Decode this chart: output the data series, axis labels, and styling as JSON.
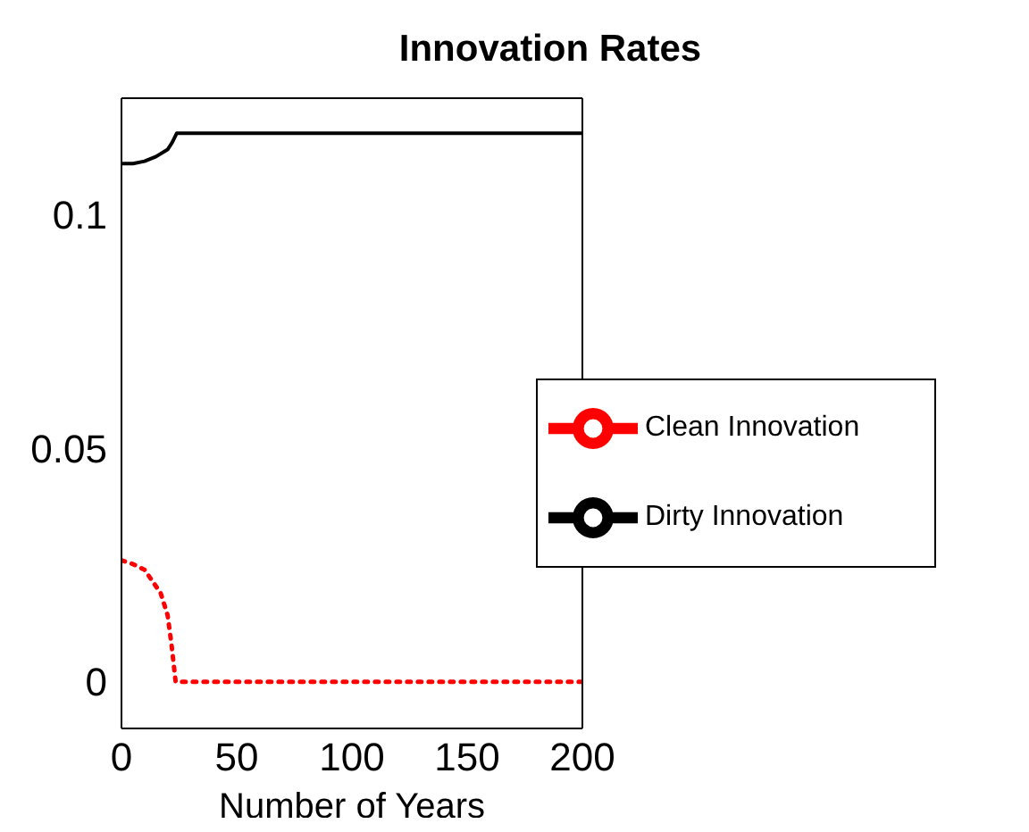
{
  "chart_data": {
    "type": "line",
    "title": "Innovation Rates",
    "xlabel": "Number of Years",
    "xlim": [
      0,
      200
    ],
    "xticks": [
      0,
      50,
      100,
      150,
      200
    ],
    "ylim": [
      -0.01,
      0.125
    ],
    "yticks": [
      0,
      0.05,
      0.1
    ],
    "legend": "right",
    "grid": false,
    "marker": "none",
    "series": [
      {
        "name": "Clean Innovation",
        "color": "#ff0000",
        "line_style": "dotted",
        "x": [
          0,
          5,
          10,
          17,
          20,
          21.7,
          23.5,
          30,
          50,
          100,
          150,
          200
        ],
        "values": [
          0.026,
          0.0252,
          0.024,
          0.019,
          0.0143,
          0.008,
          0,
          0,
          0,
          0,
          0,
          0
        ]
      },
      {
        "name": "Dirty Innovation",
        "color": "#000000",
        "line_style": "solid",
        "x": [
          0,
          5,
          10,
          15,
          20,
          22,
          24,
          30,
          50,
          100,
          150,
          200
        ],
        "values": [
          0.111,
          0.111,
          0.1115,
          0.1125,
          0.114,
          0.1155,
          0.1175,
          0.1175,
          0.1175,
          0.1175,
          0.1175,
          0.1175
        ]
      }
    ]
  }
}
